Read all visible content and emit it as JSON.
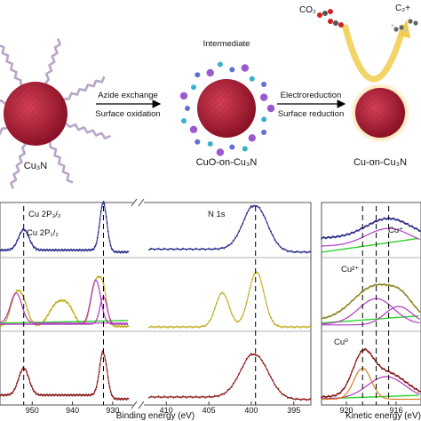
{
  "scheme": {
    "stages": [
      {
        "id": "cu3n",
        "label": "Cu₃N"
      },
      {
        "id": "cuo_on_cu3n",
        "title": "Intermediate",
        "label": "CuO-on-Cu₃N"
      },
      {
        "id": "cu_on_cu3n",
        "label": "Cu-on-Cu₃N"
      }
    ],
    "arrows": [
      {
        "top": "Azide exchange",
        "bottom": "Surface oxidation"
      },
      {
        "top": "Electroreduction",
        "bottom": "Surface reduction"
      }
    ],
    "reactant": "CO₂",
    "product": "C₂+"
  },
  "colors": {
    "sample1": "#2b2b8c",
    "sample2": "#bfae1e",
    "sample3": "#8b1a1a",
    "fit": "#e07b22",
    "component": "#b03ac0",
    "background": "#2fd02f",
    "shell": "#7a1f5c",
    "core": "#c4202f",
    "halo": "#e3b14a",
    "ligand": "#b8a6c8"
  },
  "chart_data": [
    {
      "type": "line",
      "title": "",
      "xlabel": "Binding energy (eV)",
      "ylabel": "",
      "axis_break": "between 930 and 410",
      "x_ticks": [
        950,
        940,
        930,
        410,
        405,
        400,
        395
      ],
      "xlim_left": [
        958,
        926
      ],
      "xlim_right": [
        412,
        393
      ],
      "annotations": [
        "Cu 2P₃/₂",
        "Cu 2P₁/₂",
        "N 1s"
      ],
      "reference_lines": [
        952.1,
        932.3,
        399.5
      ],
      "series": [
        {
          "row": 1,
          "peaks_eV": [
            952.1,
            932.3,
            399.5
          ]
        },
        {
          "row": 2,
          "peaks_eV": [
            954.0,
            944.0,
            934.2,
            932.3,
            403.4,
            399.4
          ]
        },
        {
          "row": 3,
          "peaks_eV": [
            952.1,
            932.3,
            399.6
          ]
        }
      ]
    },
    {
      "type": "line",
      "title": "",
      "xlabel": "Kinetic energy (eV)",
      "ylabel": "",
      "x_ticks": [
        920,
        916
      ],
      "xlim": [
        922,
        914
      ],
      "annotations": [
        "Cu⁺",
        "Cu²⁺",
        "Cu⁰"
      ],
      "reference_lines": [
        918.7,
        917.6,
        916.6
      ],
      "series": [
        {
          "row": 1,
          "component": "Cu⁺",
          "peak_eV": 916.6
        },
        {
          "row": 2,
          "component": "Cu²⁺",
          "peak_eV": 917.6
        },
        {
          "row": 3,
          "component": "Cu⁰",
          "peak_eV": 918.7
        }
      ]
    }
  ]
}
